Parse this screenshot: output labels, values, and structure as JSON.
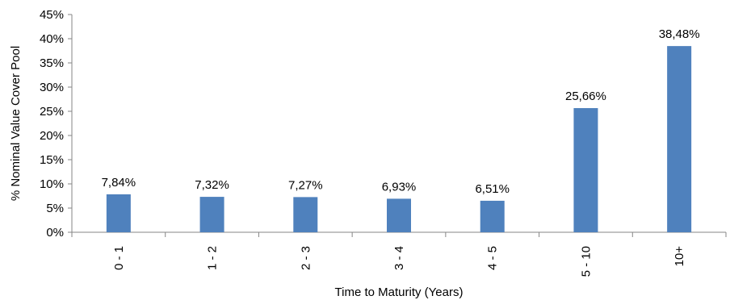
{
  "chart_data": {
    "type": "bar",
    "title": "",
    "xlabel": "Time to Maturity (Years)",
    "ylabel": "% Nominal Value Cover Pool",
    "categories": [
      "0 - 1",
      "1 - 2",
      "2 - 3",
      "3 - 4",
      "4 - 5",
      "5 - 10",
      "10+"
    ],
    "values": [
      7.84,
      7.32,
      7.27,
      6.93,
      6.51,
      25.66,
      38.48
    ],
    "data_labels": [
      "7,84%",
      "7,32%",
      "7,27%",
      "6,93%",
      "6,51%",
      "25,66%",
      "38,48%"
    ],
    "ylim": [
      0,
      45
    ],
    "y_ticks": [
      0,
      5,
      10,
      15,
      20,
      25,
      30,
      35,
      40,
      45
    ],
    "y_tick_labels": [
      "0%",
      "5%",
      "10%",
      "15%",
      "20%",
      "25%",
      "30%",
      "35%",
      "40%",
      "45%"
    ],
    "bar_color": "#4F81BD",
    "axis_color": "#868686",
    "grid": false,
    "legend": "none"
  }
}
